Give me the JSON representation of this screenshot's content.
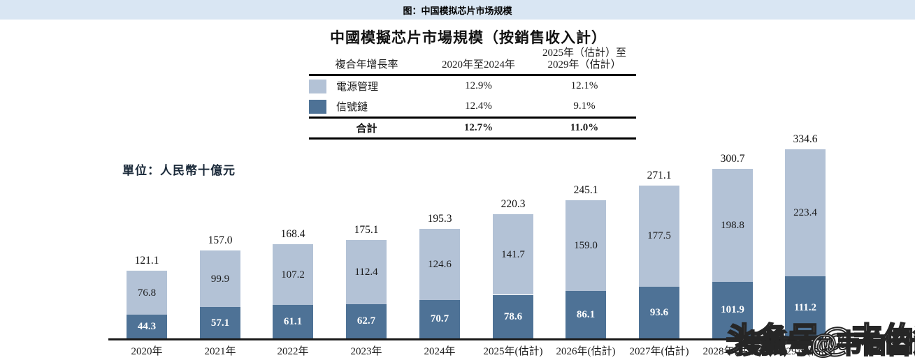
{
  "page_header": {
    "caption": "图：中国模拟芯片市场规模"
  },
  "chart": {
    "title": "中國模擬芯片市場規模（按銷售收入計）",
    "unit_label": "單位：人民幣十億元",
    "table": {
      "col1_header": "複合年增長率",
      "col2_header": "2020年至2024年",
      "col3_header_line1": "2025年（估計）至",
      "col3_header_line2": "2029年（估計）",
      "rows": [
        {
          "label": "電源管理",
          "cagr_2020_2024": "12.9%",
          "cagr_2025_2029": "12.1%"
        },
        {
          "label": "信號鏈",
          "cagr_2020_2024": "12.4%",
          "cagr_2025_2029": "9.1%"
        },
        {
          "label": "合計",
          "cagr_2020_2024": "12.7%",
          "cagr_2025_2029": "11.0%"
        }
      ]
    }
  },
  "chart_data": {
    "type": "bar",
    "stacked": true,
    "title": "中國模擬芯片市場規模（按銷售收入計）",
    "unit": "人民幣十億元",
    "categories": [
      "2020年",
      "2021年",
      "2022年",
      "2023年",
      "2024年",
      "2025年(估計)",
      "2026年(估計)",
      "2027年(估計)",
      "2028年(估計)",
      "2029年(估計)"
    ],
    "series": [
      {
        "name": "信號鏈",
        "color": "#4e7296",
        "values": [
          "44.3",
          "57.1",
          "61.1",
          "62.7",
          "70.7",
          "78.6",
          "86.1",
          "93.6",
          "101.9",
          "111.2"
        ]
      },
      {
        "name": "電源管理",
        "color": "#b3c2d6",
        "values": [
          "76.8",
          "99.9",
          "107.2",
          "112.4",
          "124.6",
          "141.7",
          "159.0",
          "177.5",
          "198.8",
          "223.4"
        ]
      }
    ],
    "totals": [
      "121.1",
      "157.0",
      "168.4",
      "175.1",
      "195.3",
      "220.3",
      "245.1",
      "271.1",
      "300.7",
      "334.6"
    ],
    "ylim": [
      0,
      360
    ],
    "grid": false,
    "legend_position": "in-table-left"
  },
  "watermarks": [
    {
      "text": "头条号@韦伯咨询"
    },
    {
      "text": "搜狐号@韦伯咨询"
    }
  ],
  "colors": {
    "power_management": "#b3c2d6",
    "signal_chain": "#4e7296",
    "caption_bar_bg": "#d9e6f3",
    "text": "#1b1b1b"
  }
}
